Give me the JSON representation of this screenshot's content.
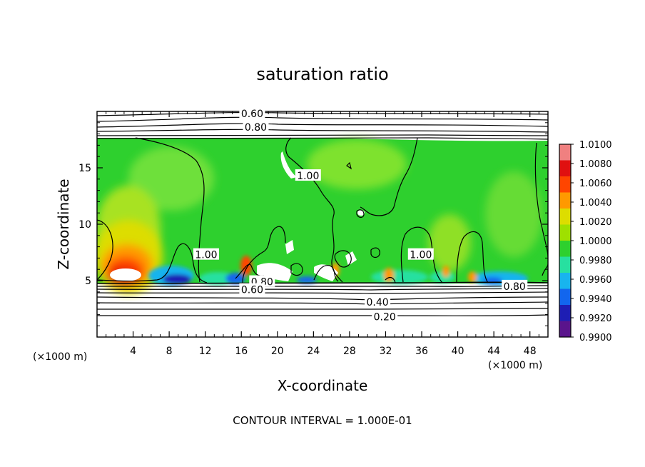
{
  "chart_data": {
    "type": "heatmap",
    "title": "saturation ratio",
    "xlabel": "X-coordinate",
    "ylabel": "Z-coordinate",
    "x_unit": "(×1000 m)",
    "z_unit": "(×1000 m)",
    "xlim": [
      0,
      50
    ],
    "ylim": [
      0,
      20
    ],
    "x_ticks": [
      4,
      8,
      12,
      16,
      20,
      24,
      28,
      32,
      36,
      40,
      44,
      48
    ],
    "y_ticks": [
      5,
      10,
      15
    ],
    "footer": "CONTOUR INTERVAL = 1.000E-01",
    "colorbar": {
      "levels": [
        "1.0100",
        "1.0080",
        "1.0060",
        "1.0040",
        "1.0020",
        "1.0000",
        "0.9980",
        "0.9960",
        "0.9940",
        "0.9920",
        "0.9900"
      ],
      "colors": [
        "#f08080",
        "#e01010",
        "#ff4500",
        "#ff9900",
        "#dddd00",
        "#9fe000",
        "#2ed02e",
        "#27e0a0",
        "#18b4ee",
        "#1266ee",
        "#1e1eb4",
        "#5a148c"
      ]
    },
    "contour_labels": [
      {
        "text": "0.60",
        "x": 17.2,
        "y": 19.8
      },
      {
        "text": "0.80",
        "x": 17.6,
        "y": 18.6
      },
      {
        "text": "1.00",
        "x": 23.4,
        "y": 14.3
      },
      {
        "text": "1.00",
        "x": 12.1,
        "y": 7.3
      },
      {
        "text": "1.00",
        "x": 35.9,
        "y": 7.3
      },
      {
        "text": "0.80",
        "x": 18.3,
        "y": 4.9
      },
      {
        "text": "0.60",
        "x": 17.2,
        "y": 4.2
      },
      {
        "text": "0.80",
        "x": 46.3,
        "y": 4.5
      },
      {
        "text": "0.40",
        "x": 31.1,
        "y": 3.1
      },
      {
        "text": "0.20",
        "x": 31.9,
        "y": 1.8
      }
    ]
  }
}
